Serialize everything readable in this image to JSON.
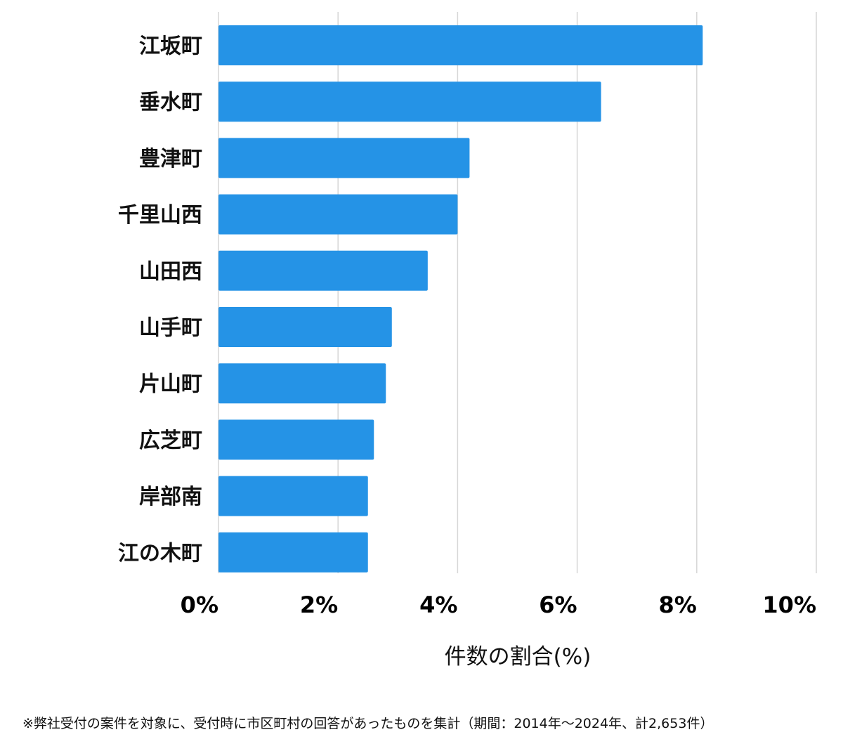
{
  "chart_data": {
    "type": "bar",
    "orientation": "horizontal",
    "categories": [
      "江坂町",
      "垂水町",
      "豊津町",
      "千里山西",
      "山田西",
      "山手町",
      "片山町",
      "広芝町",
      "岸部南",
      "江の木町"
    ],
    "values": [
      8.1,
      6.4,
      4.2,
      4.0,
      3.5,
      2.9,
      2.8,
      2.6,
      2.5,
      2.5
    ],
    "xlim": [
      0,
      10
    ],
    "x_ticks": [
      0,
      2,
      4,
      6,
      8,
      10
    ],
    "x_tick_labels": [
      "0%",
      "2%",
      "4%",
      "6%",
      "8%",
      "10%"
    ],
    "xlabel": "件数の割合(%)",
    "ylabel": "",
    "title": "",
    "grid": "vertical",
    "bar_color": "#2593e6",
    "footnote": "※弊社受付の案件を対象に、受付時に市区町村の回答があったものを集計（期間：2014年～2024年、計2,653件）"
  }
}
